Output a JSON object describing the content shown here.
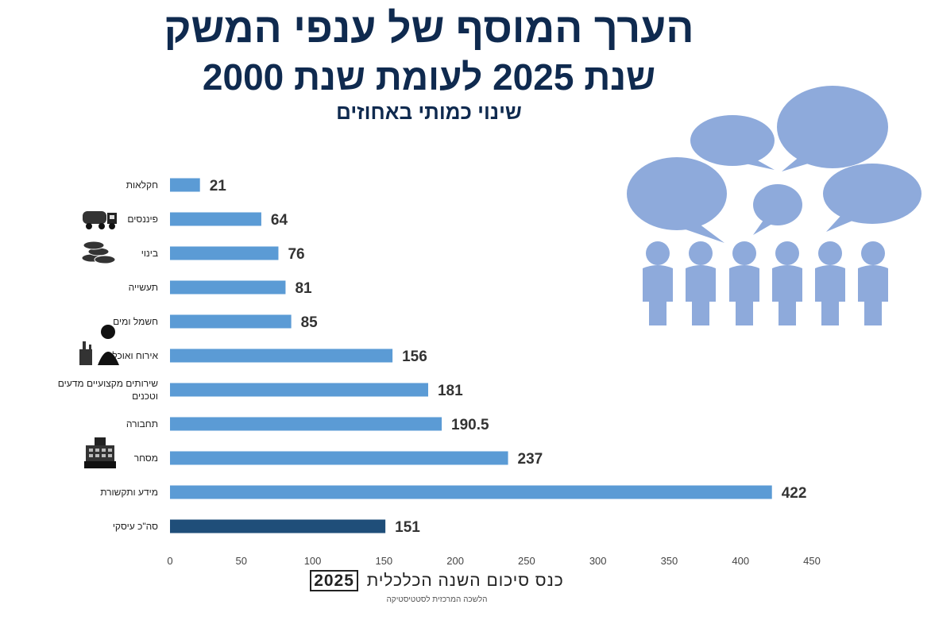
{
  "header": {
    "title": "הערך המוסף של ענפי המשק",
    "subtitle": "שנת 2025 לעומת שנת 2000",
    "caption": "שינוי כמותי באחוזים"
  },
  "chart_data": {
    "type": "bar",
    "orientation": "horizontal",
    "categories": [
      "חקלאות",
      "פיננסים",
      "בינוי",
      "תעשייה",
      "חשמל ומים",
      "אירוח ואוכל",
      "שירותים מקצועיים מדעים וטכנים",
      "תחבורה",
      "מסחר",
      "מידע ותקשורת",
      "סה\"כ עיסקי"
    ],
    "category_lines": [
      [
        "חקלאות"
      ],
      [
        "פיננסים"
      ],
      [
        "בינוי"
      ],
      [
        "תעשייה"
      ],
      [
        "חשמל ומים"
      ],
      [
        "אירוח ואוכל"
      ],
      [
        "שירותים מקצועיים מדעים",
        "וטכנים"
      ],
      [
        "תחבורה"
      ],
      [
        "מסחר"
      ],
      [
        "מידע ותקשורת"
      ],
      [
        "סה\"כ עיסקי"
      ]
    ],
    "values": [
      21,
      64,
      76,
      81,
      85,
      156,
      181,
      190.5,
      237,
      422,
      151
    ],
    "value_labels": [
      "21",
      "64",
      "76",
      "81",
      "85",
      "156",
      "181",
      "190.5",
      "237",
      "422",
      "151"
    ],
    "highlight_index": 10,
    "xlim": [
      0,
      450
    ],
    "xticks": [
      0,
      50,
      100,
      150,
      200,
      250,
      300,
      350,
      400,
      450
    ],
    "xlabel": "",
    "ylabel": "",
    "grid": false,
    "colors": {
      "bar": "#5b9bd5",
      "highlight": "#1f4e79",
      "label": "#333333"
    }
  },
  "decorations": {
    "category_icons": [
      "",
      "cement-truck-icon",
      "coins-icon",
      "",
      "",
      "waiter-icon",
      "",
      "",
      "cash-register-icon",
      "",
      ""
    ],
    "people_color": "#8eaadb"
  },
  "footer": {
    "conference": "כנס סיכום השנה הכלכלית",
    "year": "2025",
    "source": "הלשכה המרכזית לסטטיסטיקה"
  }
}
